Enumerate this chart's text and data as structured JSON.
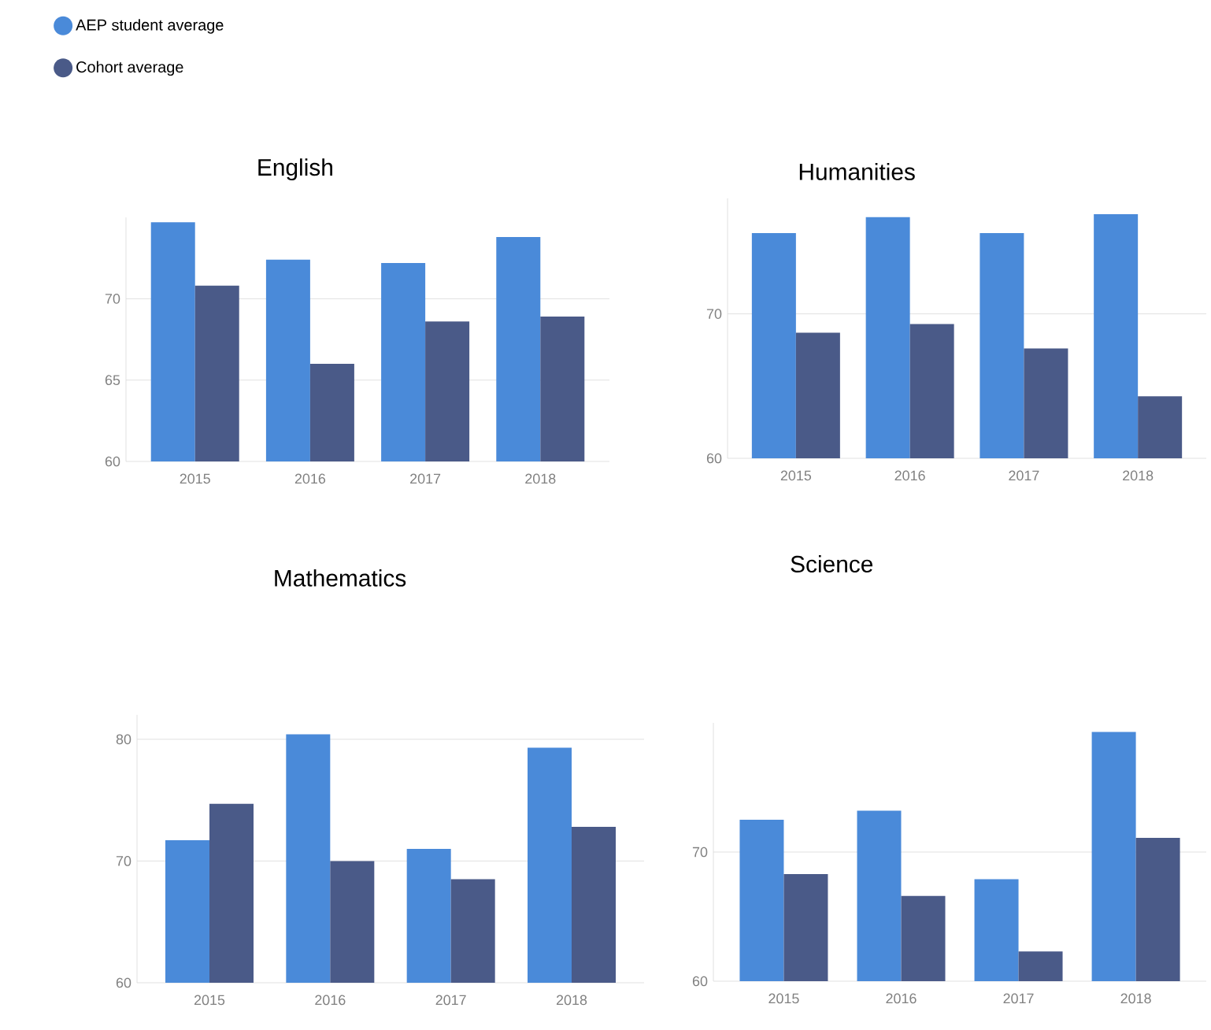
{
  "chart_data": [
    {
      "type": "bar",
      "title": "English",
      "categories": [
        "2015",
        "2016",
        "2017",
        "2018"
      ],
      "series": [
        {
          "name": "AEP student average",
          "color": "#4a8ad9",
          "values": [
            74.7,
            72.4,
            72.2,
            73.8
          ]
        },
        {
          "name": "Cohort average",
          "color": "#4a5a88",
          "values": [
            70.8,
            66.0,
            68.6,
            68.9
          ]
        }
      ],
      "ylim": [
        60,
        75
      ],
      "yticks": [
        60,
        65,
        70
      ],
      "grid": "y",
      "legend": "top left"
    },
    {
      "type": "bar",
      "title": "Humanities",
      "categories": [
        "2015",
        "2016",
        "2017",
        "2018"
      ],
      "series": [
        {
          "color": "#4a8ad9",
          "values": [
            75.6,
            76.7,
            75.6,
            76.9
          ]
        },
        {
          "color": "#4a5a88",
          "values": [
            68.7,
            69.3,
            67.6,
            64.3
          ]
        }
      ],
      "ylim": [
        60,
        78
      ],
      "yticks": [
        60,
        70
      ],
      "grid": "y"
    },
    {
      "type": "bar",
      "title": "Mathematics",
      "categories": [
        "2015",
        "2016",
        "2017",
        "2018"
      ],
      "series": [
        {
          "color": "#4a8ad9",
          "values": [
            71.7,
            80.4,
            71.0,
            79.3
          ]
        },
        {
          "color": "#4a5a88",
          "values": [
            74.7,
            70.0,
            68.5,
            72.8
          ]
        }
      ],
      "ylim": [
        60,
        82
      ],
      "yticks": [
        60,
        70,
        80
      ],
      "grid": "y"
    },
    {
      "type": "bar",
      "title": "Science",
      "categories": [
        "2015",
        "2016",
        "2017",
        "2018"
      ],
      "series": [
        {
          "color": "#4a8ad9",
          "values": [
            72.5,
            73.2,
            67.9,
            79.3
          ]
        },
        {
          "color": "#4a5a88",
          "values": [
            68.3,
            66.6,
            62.3,
            71.1
          ]
        }
      ],
      "ylim": [
        60,
        80
      ],
      "yticks": [
        60,
        70
      ],
      "grid": "y"
    }
  ]
}
